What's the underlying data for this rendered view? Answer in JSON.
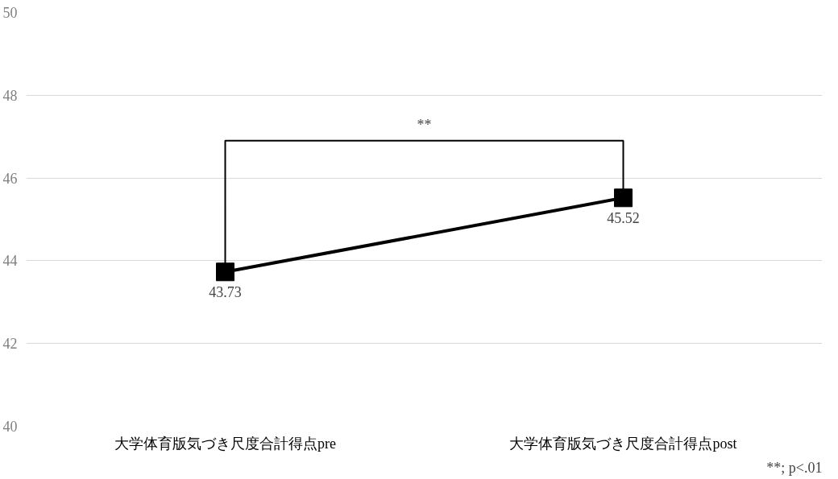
{
  "chart_data": {
    "type": "line",
    "categories": [
      "大学体育版気づき尺度合計得点pre",
      "大学体育版気づき尺度合計得点post"
    ],
    "series": [
      {
        "color": "#000000",
        "values": [
          43.73,
          45.52
        ]
      }
    ],
    "ylim": [
      40,
      50
    ],
    "yticks": [
      40,
      42,
      44,
      46,
      48,
      50
    ],
    "grid": "y",
    "marker": "square",
    "line_style": "solid",
    "data_labels": true,
    "annotations": [
      "**",
      "**; p<.01"
    ]
  }
}
